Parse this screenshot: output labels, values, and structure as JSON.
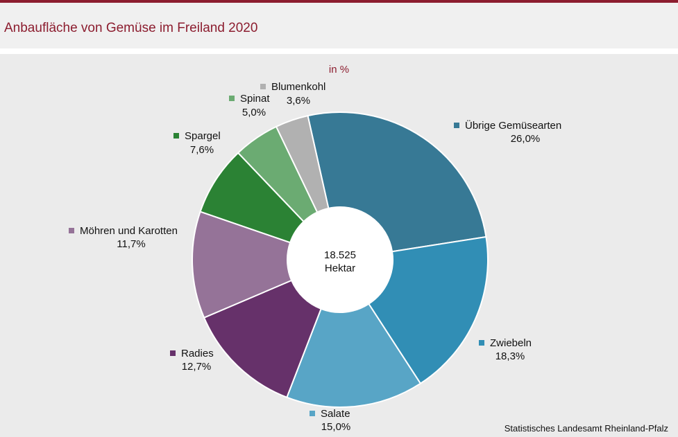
{
  "header": {
    "title": "Anbaufläche von Gemüse im Freiland 2020"
  },
  "chart": {
    "unit": "in %",
    "center_value": "18.525",
    "center_unit": "Hektar"
  },
  "footer": {
    "source": "Statistisches Landesamt Rheinland-Pfalz"
  },
  "chart_data": {
    "type": "pie",
    "title": "Anbaufläche von Gemüse im Freiland 2020",
    "unit": "in %",
    "total": "18.525 Hektar",
    "slices": [
      {
        "name": "Übrige Gemüsearten",
        "value": 26.0,
        "label": "26,0%",
        "color": "#377995"
      },
      {
        "name": "Zwiebeln",
        "value": 18.3,
        "label": "18,3%",
        "color": "#318eb5"
      },
      {
        "name": "Salate",
        "value": 15.0,
        "label": "15,0%",
        "color": "#58a5c6"
      },
      {
        "name": "Radies",
        "value": 12.7,
        "label": "12,7%",
        "color": "#66316a"
      },
      {
        "name": "Möhren und Karotten",
        "value": 11.7,
        "label": "11,7%",
        "color": "#957398"
      },
      {
        "name": "Spargel",
        "value": 7.6,
        "label": "7,6%",
        "color": "#2b8234"
      },
      {
        "name": "Spinat",
        "value": 5.0,
        "label": "5,0%",
        "color": "#6bab72"
      },
      {
        "name": "Blumenkohl",
        "value": 3.6,
        "label": "3,6%",
        "color": "#b1b1b1"
      }
    ]
  }
}
